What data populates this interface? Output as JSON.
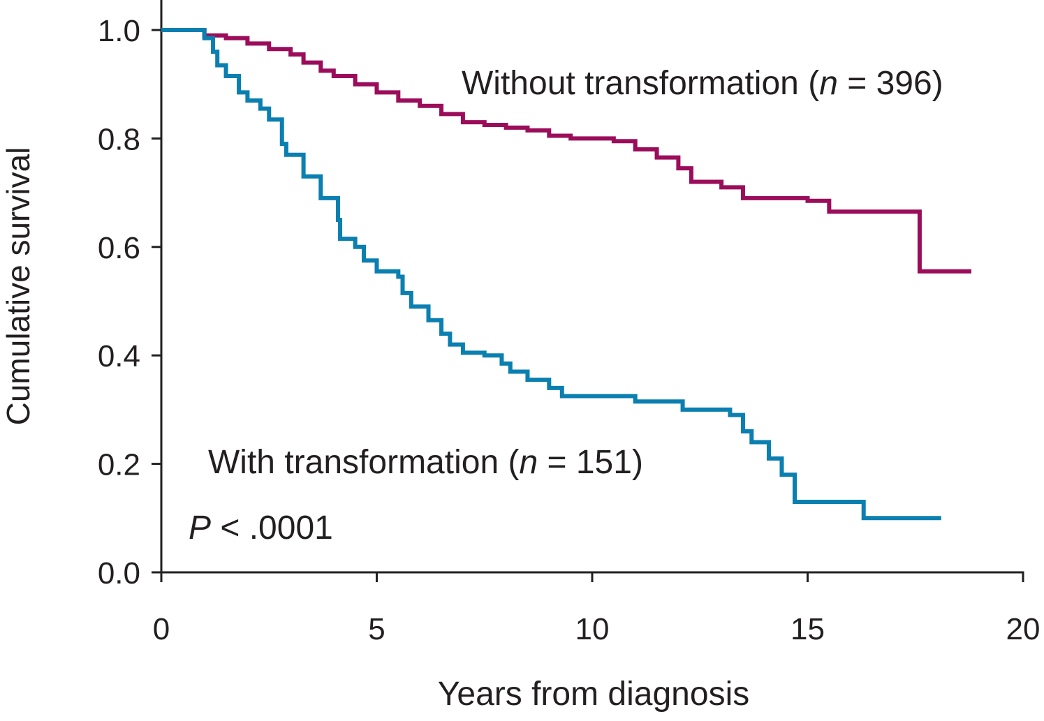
{
  "chart_data": {
    "type": "line",
    "step": true,
    "x_label": "Years from diagnosis",
    "y_label": "Cumulative survival",
    "xlim": [
      0,
      20
    ],
    "xticks": [
      0,
      5,
      10,
      15,
      20
    ],
    "ylim": [
      0,
      1
    ],
    "yticks": [
      {
        "value": 0,
        "label": "0.0"
      },
      0.2,
      0.4,
      0.6,
      0.8,
      {
        "value": 1,
        "label": "1.0"
      }
    ],
    "annotations": [
      {
        "parts": [
          "Without transformation (",
          "n",
          " = 396)"
        ]
      },
      {
        "parts": [
          "With transformation (",
          "n",
          " = 151)"
        ]
      },
      {
        "parts": [
          "P",
          " < .0001"
        ]
      }
    ],
    "series": [
      {
        "color": "#9b0d5a",
        "x": [
          0,
          1.0,
          1.5,
          2,
          2.5,
          3,
          3.3,
          3.7,
          4,
          4.5,
          5,
          5.5,
          6,
          6.5,
          7,
          7.5,
          8,
          8.5,
          9,
          9.5,
          10.5,
          11,
          11.5,
          12,
          12.3,
          13,
          13.5,
          15,
          15.5,
          17.6,
          18.8
        ],
        "values": [
          1.0,
          0.99,
          0.985,
          0.975,
          0.965,
          0.955,
          0.94,
          0.925,
          0.915,
          0.9,
          0.885,
          0.87,
          0.86,
          0.845,
          0.83,
          0.825,
          0.82,
          0.815,
          0.805,
          0.8,
          0.795,
          0.78,
          0.765,
          0.745,
          0.72,
          0.71,
          0.69,
          0.685,
          0.665,
          0.555,
          0.555
        ]
      },
      {
        "color": "#0a7fb0",
        "x": [
          0,
          1,
          1.2,
          1.3,
          1.5,
          1.8,
          2.0,
          2.3,
          2.5,
          2.8,
          2.9,
          3.3,
          3.7,
          4.1,
          4.15,
          4.5,
          4.7,
          5.0,
          5.5,
          5.6,
          5.8,
          6.2,
          6.5,
          6.7,
          7,
          7.5,
          7.9,
          8.1,
          8.5,
          9,
          9.3,
          11,
          12.1,
          13.2,
          13.5,
          13.7,
          14.1,
          14.4,
          14.7,
          16.3,
          18.1
        ],
        "values": [
          1.0,
          0.985,
          0.96,
          0.935,
          0.915,
          0.885,
          0.87,
          0.855,
          0.835,
          0.79,
          0.77,
          0.73,
          0.69,
          0.65,
          0.615,
          0.6,
          0.575,
          0.555,
          0.545,
          0.515,
          0.49,
          0.465,
          0.44,
          0.42,
          0.405,
          0.4,
          0.385,
          0.37,
          0.355,
          0.34,
          0.325,
          0.315,
          0.3,
          0.29,
          0.26,
          0.24,
          0.21,
          0.18,
          0.13,
          0.1,
          0.1
        ]
      }
    ]
  }
}
